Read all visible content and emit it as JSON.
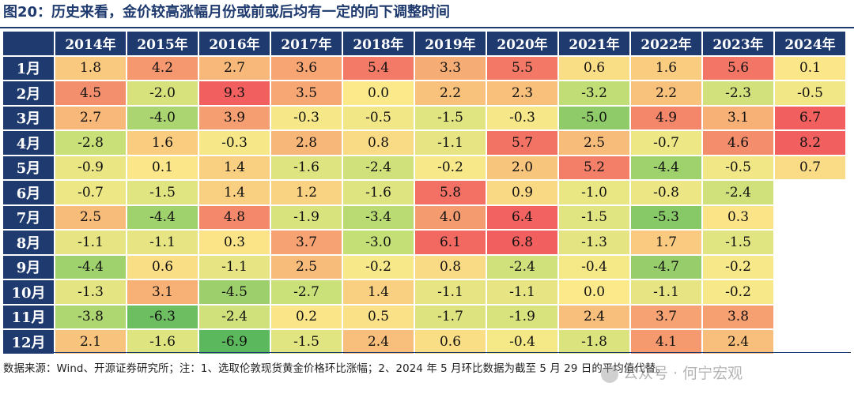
{
  "figure": {
    "title": "图20：历史来看，金价较高涨幅月份或前或后均有一定的向下调整时间",
    "source_note": "数据来源：Wind、开源证券研究所；注：1、选取伦敦现货黄金价格环比涨幅；2、2024 年 5 月环比数据为截至 5 月 29 日的平均值代替。",
    "watermark": "公众号 · 何宁宏观"
  },
  "chart_data": {
    "type": "heatmap",
    "title": "图20：历史来看，金价较高涨幅月份或前或后均有一定的向下调整时间",
    "columns": [
      "2014年",
      "2015年",
      "2016年",
      "2017年",
      "2018年",
      "2019年",
      "2020年",
      "2021年",
      "2022年",
      "2023年",
      "2024年"
    ],
    "rows": [
      "1月",
      "2月",
      "3月",
      "4月",
      "5月",
      "6月",
      "7月",
      "8月",
      "9月",
      "10月",
      "11月",
      "12月"
    ],
    "values": [
      [
        1.8,
        4.2,
        2.7,
        3.6,
        5.4,
        3.3,
        5.5,
        0.6,
        1.6,
        5.6,
        0.1
      ],
      [
        4.5,
        -2.0,
        9.3,
        3.5,
        0.0,
        2.2,
        2.3,
        -3.2,
        2.2,
        -2.3,
        -0.5
      ],
      [
        2.7,
        -4.0,
        3.9,
        -0.3,
        -0.5,
        -1.5,
        -0.3,
        -5.0,
        4.9,
        3.1,
        6.7
      ],
      [
        -2.8,
        1.6,
        -0.3,
        2.8,
        0.8,
        -1.1,
        5.7,
        2.5,
        -0.7,
        4.6,
        8.2
      ],
      [
        -0.9,
        0.1,
        1.4,
        -1.6,
        -2.4,
        -0.2,
        2.0,
        5.2,
        -4.4,
        -0.5,
        0.7
      ],
      [
        -0.7,
        -1.5,
        1.4,
        1.2,
        -1.6,
        5.8,
        0.9,
        -1.0,
        -0.8,
        -2.4,
        null
      ],
      [
        2.5,
        -4.4,
        4.8,
        -1.9,
        -3.4,
        4.0,
        6.4,
        -1.5,
        -5.3,
        0.3,
        null
      ],
      [
        -1.1,
        -1.1,
        0.3,
        3.7,
        -3.0,
        6.1,
        6.8,
        -1.3,
        1.7,
        -1.5,
        null
      ],
      [
        -4.4,
        0.6,
        -1.1,
        2.5,
        -0.2,
        0.8,
        -2.4,
        -0.4,
        -4.7,
        -0.2,
        null
      ],
      [
        -1.3,
        3.1,
        -4.5,
        -2.7,
        1.4,
        -1.1,
        -1.1,
        0.0,
        -1.1,
        -0.2,
        null
      ],
      [
        -3.8,
        -6.3,
        -2.4,
        0.2,
        0.5,
        -1.7,
        -1.9,
        2.4,
        3.7,
        3.8,
        null
      ],
      [
        2.1,
        -1.6,
        -6.9,
        -1.5,
        2.4,
        0.6,
        -0.4,
        -1.8,
        4.1,
        2.4,
        null
      ]
    ],
    "colors": {
      "low": "#5cb85c",
      "mid_low": "#c5df77",
      "mid": "#fbe98a",
      "mid_high": "#f7b377",
      "high": "#f1605f",
      "header_bg": "#1f3a6e",
      "header_text": "#ffffff"
    }
  }
}
